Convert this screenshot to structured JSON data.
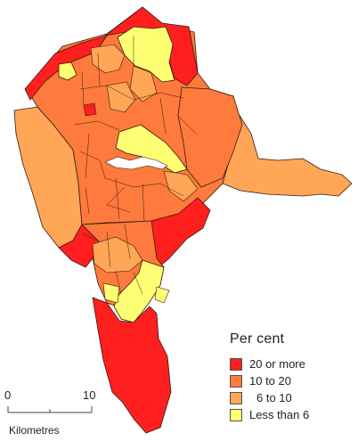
{
  "legend": {
    "title": "Per cent",
    "items": [
      {
        "label": "20 or more",
        "color": "#ff1f1f"
      },
      {
        "label": "10 to 20",
        "color": "#ff7a3d"
      },
      {
        "label": "6 to 10",
        "color": "#ffa657"
      },
      {
        "label": "Less than 6",
        "color": "#ffff73"
      }
    ]
  },
  "scale_bar": {
    "start_label": "0",
    "end_label": "10",
    "unit_label": "Kilometres"
  },
  "colors": {
    "boundary": "#3a1a10",
    "water": "#ffffff"
  }
}
